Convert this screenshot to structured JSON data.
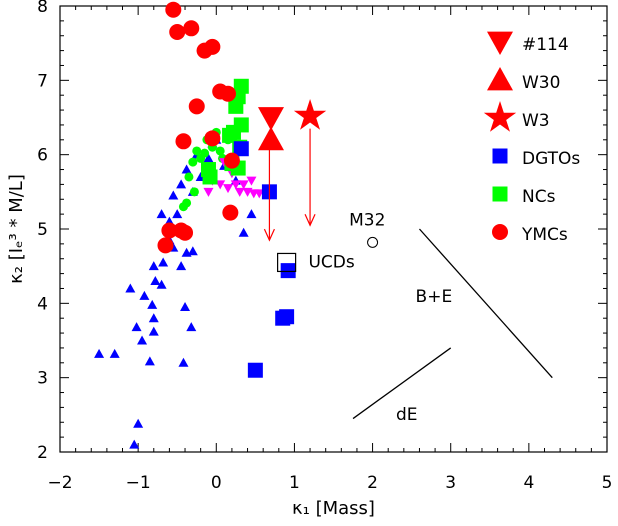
{
  "chart_data": {
    "type": "scatter",
    "title": "",
    "xlabel": "κ₁ [Mass]",
    "ylabel": "κ₂ [Iₑ³ * M/L]",
    "xlim": [
      -2,
      5
    ],
    "ylim": [
      2,
      8
    ],
    "x_ticks": [
      -2,
      -1,
      0,
      1,
      2,
      3,
      4,
      5
    ],
    "y_ticks": [
      2,
      3,
      4,
      5,
      6,
      7,
      8
    ],
    "grid": false,
    "legend_position": "top-right",
    "series": [
      {
        "name": "#114",
        "marker": "down-triangle",
        "size": "large",
        "color": "#ff0000",
        "points": [
          [
            0.7,
            6.5
          ]
        ]
      },
      {
        "name": "W30",
        "marker": "triangle",
        "size": "large",
        "color": "#ff0000",
        "points": [
          [
            0.7,
            6.2
          ]
        ]
      },
      {
        "name": "W3",
        "marker": "star",
        "size": "large",
        "color": "#ff0000",
        "points": [
          [
            1.2,
            6.52
          ]
        ]
      },
      {
        "name": "DGTOs",
        "marker": "square",
        "size": "large",
        "color": "#0000ff",
        "points": [
          [
            0.92,
            4.44
          ],
          [
            0.85,
            3.8
          ],
          [
            0.9,
            3.82
          ],
          [
            0.5,
            3.1
          ],
          [
            0.68,
            5.5
          ],
          [
            0.32,
            6.08
          ]
        ]
      },
      {
        "name": "NCs",
        "marker": "square",
        "size": "large",
        "color": "#00ff00",
        "points": [
          [
            0.32,
            6.92
          ],
          [
            0.28,
            6.78
          ],
          [
            0.25,
            6.65
          ],
          [
            0.32,
            6.4
          ],
          [
            0.22,
            6.3
          ],
          [
            0.17,
            6.26
          ],
          [
            0.3,
            6.1
          ],
          [
            0.2,
            5.88
          ],
          [
            0.28,
            5.82
          ],
          [
            -0.1,
            5.8
          ],
          [
            -0.08,
            5.7
          ]
        ]
      },
      {
        "name": "",
        "marker": "circle",
        "size": "small",
        "color": "#00ff00",
        "points": [
          [
            -0.3,
            5.9
          ],
          [
            -0.25,
            6.05
          ],
          [
            -0.15,
            6.02
          ],
          [
            -0.05,
            6.1
          ],
          [
            0.05,
            6.05
          ],
          [
            -0.2,
            5.95
          ],
          [
            -0.35,
            5.7
          ],
          [
            -0.28,
            5.5
          ],
          [
            0.08,
            5.95
          ],
          [
            -0.12,
            6.2
          ],
          [
            0.0,
            6.3
          ],
          [
            -0.38,
            5.35
          ],
          [
            -0.42,
            5.3
          ],
          [
            0.15,
            6.2
          ]
        ]
      },
      {
        "name": "",
        "marker": "down-triangle",
        "size": "small",
        "color": "#ff00ff",
        "points": [
          [
            -0.1,
            5.5
          ],
          [
            0.05,
            5.6
          ],
          [
            0.15,
            5.55
          ],
          [
            0.25,
            5.6
          ],
          [
            0.35,
            5.6
          ],
          [
            0.4,
            5.5
          ],
          [
            0.48,
            5.48
          ],
          [
            0.3,
            5.5
          ],
          [
            0.55,
            5.48
          ],
          [
            0.1,
            5.9
          ],
          [
            0.2,
            5.75
          ],
          [
            -0.05,
            5.65
          ],
          [
            0.45,
            5.65
          ]
        ]
      },
      {
        "name": "",
        "marker": "triangle",
        "size": "small",
        "color": "#0000ff",
        "points": [
          [
            -1.5,
            3.32
          ],
          [
            -1.3,
            3.32
          ],
          [
            -1.1,
            4.2
          ],
          [
            -1.02,
            3.68
          ],
          [
            -0.95,
            3.5
          ],
          [
            -0.85,
            3.22
          ],
          [
            -0.92,
            4.1
          ],
          [
            -0.8,
            4.5
          ],
          [
            -0.78,
            4.3
          ],
          [
            -0.82,
            3.98
          ],
          [
            -0.8,
            3.8
          ],
          [
            -0.7,
            4.25
          ],
          [
            -0.68,
            4.55
          ],
          [
            -0.6,
            4.85
          ],
          [
            -0.55,
            4.75
          ],
          [
            -0.45,
            4.5
          ],
          [
            -0.4,
            3.95
          ],
          [
            -0.42,
            3.2
          ],
          [
            -0.38,
            4.68
          ],
          [
            -0.3,
            4.7
          ],
          [
            -0.5,
            5.2
          ],
          [
            -0.6,
            5.1
          ],
          [
            -0.7,
            5.2
          ],
          [
            -0.45,
            5.6
          ],
          [
            -0.38,
            5.8
          ],
          [
            -0.3,
            5.5
          ],
          [
            -0.1,
            5.95
          ],
          [
            -0.05,
            6.15
          ],
          [
            0.0,
            6.2
          ],
          [
            0.1,
            5.85
          ],
          [
            0.25,
            5.65
          ],
          [
            0.35,
            4.95
          ],
          [
            0.45,
            5.2
          ],
          [
            -1.0,
            2.38
          ],
          [
            -1.05,
            2.1
          ],
          [
            -0.32,
            3.68
          ],
          [
            -0.8,
            3.62
          ],
          [
            -0.25,
            6.0
          ],
          [
            -0.2,
            5.7
          ],
          [
            -0.55,
            5.45
          ]
        ]
      },
      {
        "name": "YMCs",
        "marker": "circle",
        "size": "large",
        "color": "#ff0000",
        "points": [
          [
            -0.55,
            7.95
          ],
          [
            -0.5,
            7.65
          ],
          [
            -0.32,
            7.7
          ],
          [
            -0.15,
            7.4
          ],
          [
            -0.05,
            7.45
          ],
          [
            -0.25,
            6.65
          ],
          [
            -0.42,
            6.18
          ],
          [
            -0.05,
            6.22
          ],
          [
            0.05,
            6.85
          ],
          [
            0.15,
            6.82
          ],
          [
            0.2,
            5.92
          ],
          [
            0.18,
            5.22
          ],
          [
            -0.6,
            4.98
          ],
          [
            -0.45,
            4.98
          ],
          [
            -0.4,
            4.95
          ],
          [
            -0.65,
            4.78
          ]
        ]
      }
    ],
    "arrows": [
      {
        "from": [
          0.68,
          6.32
        ],
        "to": [
          0.68,
          4.85
        ],
        "color": "#ff0000"
      },
      {
        "from": [
          1.2,
          6.35
        ],
        "to": [
          1.2,
          5.05
        ],
        "color": "#ff0000"
      }
    ],
    "annotations": [
      {
        "text": "M32",
        "x": 1.7,
        "y": 5.05
      },
      {
        "text": "UCDs",
        "x": 1.18,
        "y": 4.48
      },
      {
        "text": "B+E",
        "x": 2.55,
        "y": 4.02
      },
      {
        "text": "dE",
        "x": 2.3,
        "y": 2.43
      }
    ],
    "m32_marker": {
      "marker": "open-circle",
      "x": 2.0,
      "y": 4.82
    },
    "ucd_marker": {
      "marker": "open-square",
      "x": 0.9,
      "y": 4.55
    },
    "lines": [
      {
        "name": "B+E",
        "points": [
          [
            2.6,
            5.0
          ],
          [
            4.3,
            3.0
          ]
        ]
      },
      {
        "name": "dE",
        "points": [
          [
            1.75,
            2.45
          ],
          [
            3.0,
            3.4
          ]
        ]
      }
    ]
  }
}
